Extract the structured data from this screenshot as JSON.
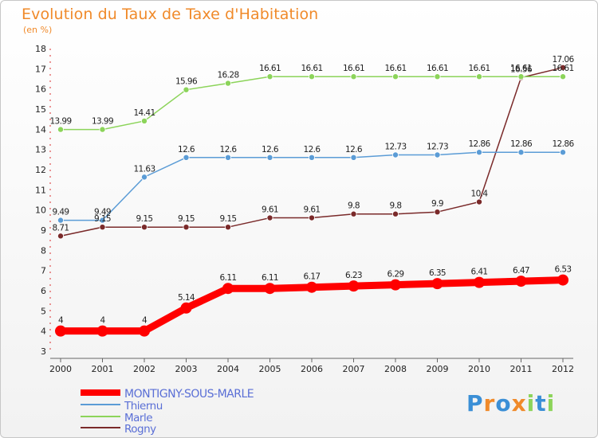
{
  "chart_data": {
    "type": "line",
    "title": "Evolution du Taux de Taxe d'Habitation",
    "subtitle": "(en %)",
    "xlabel": "",
    "ylabel": "",
    "categories": [
      "2000",
      "2001",
      "2002",
      "2003",
      "2004",
      "2005",
      "2006",
      "2007",
      "2008",
      "2009",
      "2010",
      "2011",
      "2012"
    ],
    "ylim": [
      3,
      18
    ],
    "yticks": [
      "3",
      "4",
      "5",
      "6",
      "7",
      "8",
      "9",
      "10",
      "11",
      "12",
      "13",
      "14",
      "15",
      "16",
      "17",
      "18"
    ],
    "grid": false,
    "legend_position": "bottom-left",
    "series": [
      {
        "name": "MONTIGNY-SOUS-MARLE",
        "color": "#ff0000",
        "values": [
          4,
          4,
          4,
          5.14,
          6.11,
          6.11,
          6.17,
          6.23,
          6.29,
          6.35,
          6.41,
          6.47,
          6.53
        ],
        "labels": [
          "4",
          "4",
          "4",
          "5.14",
          "6.11",
          "6.11",
          "6.17",
          "6.23",
          "6.29",
          "6.35",
          "6.41",
          "6.47",
          "6.53"
        ]
      },
      {
        "name": "Thiernu",
        "color": "#5b9cd6",
        "values": [
          9.49,
          9.49,
          11.63,
          12.6,
          12.6,
          12.6,
          12.6,
          12.6,
          12.73,
          12.73,
          12.86,
          12.86,
          12.86
        ],
        "labels": [
          "9.49",
          "9.49",
          "11.63",
          "12.6",
          "12.6",
          "12.6",
          "12.6",
          "12.6",
          "12.73",
          "12.73",
          "12.86",
          "12.86",
          "12.86"
        ]
      },
      {
        "name": "Marle",
        "color": "#8cd45a",
        "values": [
          13.99,
          13.99,
          14.41,
          15.96,
          16.28,
          16.61,
          16.61,
          16.61,
          16.61,
          16.61,
          16.61,
          16.61,
          16.61
        ],
        "labels": [
          "13.99",
          "13.99",
          "14.41",
          "15.96",
          "16.28",
          "16.61",
          "16.61",
          "16.61",
          "16.61",
          "16.61",
          "16.61",
          "16.61",
          "16.61"
        ]
      },
      {
        "name": "Rogny",
        "color": "#7a2a2a",
        "values": [
          8.71,
          9.15,
          9.15,
          9.15,
          9.15,
          9.61,
          9.61,
          9.8,
          9.8,
          9.9,
          10.4,
          16.56,
          17.06
        ],
        "labels": [
          "8.71",
          "9.15",
          "9.15",
          "9.15",
          "9.15",
          "9.61",
          "9.61",
          "9.8",
          "9.8",
          "9.9",
          "10.4",
          "16.56",
          "17.06"
        ]
      }
    ]
  },
  "logo": {
    "letters": [
      "P",
      "r",
      "o",
      "x",
      "i",
      "t",
      "i"
    ],
    "colors": [
      "#3b8fd6",
      "#f08a2a",
      "#3b8fd6",
      "#f08a2a",
      "#8cd45a",
      "#3b8fd6",
      "#8cd45a"
    ]
  }
}
